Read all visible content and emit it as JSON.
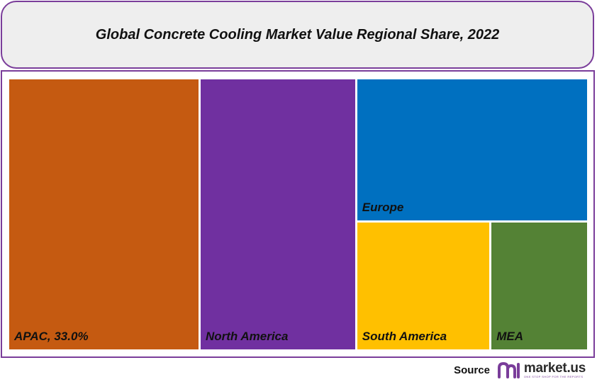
{
  "title": "Global Concrete Cooling Market Value Regional Share, 2022",
  "chart_data": {
    "type": "treemap",
    "title": "Global Concrete Cooling Market Value Regional Share, 2022",
    "items": [
      {
        "label": "APAC, 33.0%",
        "region": "APAC",
        "value": 33.0,
        "color": "#c55a11"
      },
      {
        "label": "North America",
        "region": "North America",
        "value": 27.0,
        "color": "#7030a0"
      },
      {
        "label": "Europe",
        "region": "Europe",
        "value": 21.0,
        "color": "#0070c0"
      },
      {
        "label": "South America",
        "region": "South America",
        "value": 11.0,
        "color": "#ffc000"
      },
      {
        "label": "MEA",
        "region": "MEA",
        "value": 8.0,
        "color": "#548235"
      }
    ]
  },
  "source": {
    "label": "Source",
    "brand": "market.us",
    "tagline": "ONE STOP SHOP FOR THE REPORTS"
  },
  "colors": {
    "border": "#7a3d9a",
    "title_background": "#eeeeee"
  }
}
